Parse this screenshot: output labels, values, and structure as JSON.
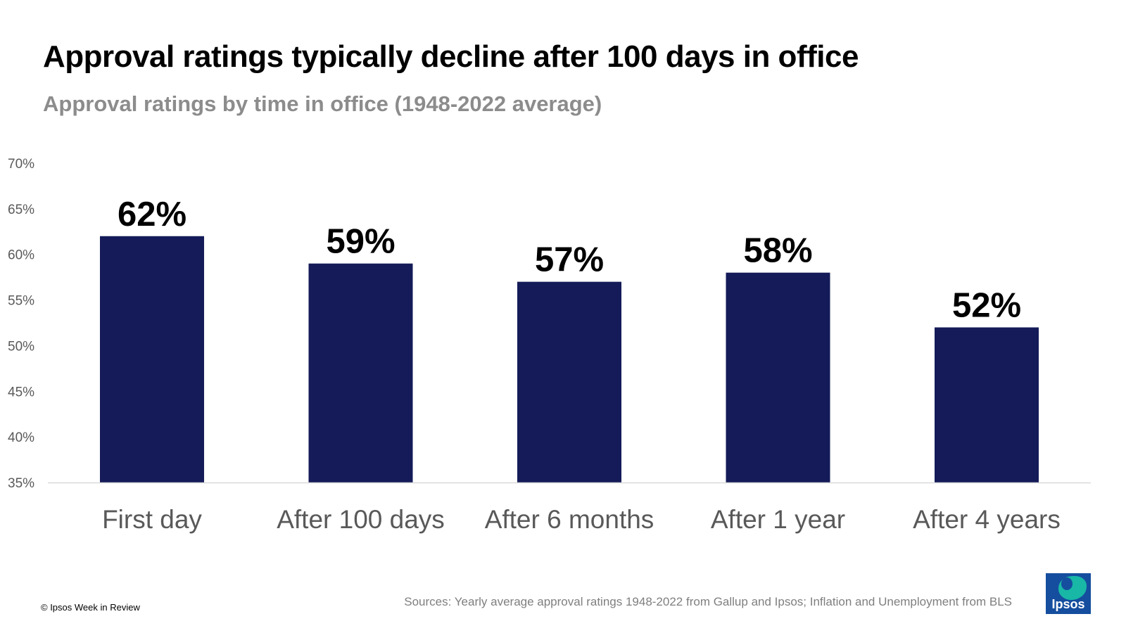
{
  "header": {
    "title": "Approval ratings typically decline after 100 days in office",
    "subtitle": "Approval ratings by time in office (1948-2022 average)"
  },
  "footer": {
    "copyright": "© Ipsos Week in Review",
    "sources": "Sources:  Yearly average approval ratings 1948-2022 from Gallup and Ipsos; Inflation and Unemployment from BLS",
    "logo_text": "Ipsos"
  },
  "colors": {
    "bar": "#141b58",
    "axis_line": "#d9d9d9",
    "tick_text": "#595959",
    "category_text": "#595959",
    "data_label": "#000000"
  },
  "chart_data": {
    "type": "bar",
    "title": "Approval ratings typically decline after 100 days in office",
    "subtitle": "Approval ratings by time in office (1948-2022 average)",
    "categories": [
      "First day",
      "After 100 days",
      "After 6 months",
      "After 1 year",
      "After 4 years"
    ],
    "values": [
      62,
      59,
      57,
      58,
      52
    ],
    "data_labels": [
      "62%",
      "59%",
      "57%",
      "58%",
      "52%"
    ],
    "ylim": [
      35,
      70
    ],
    "yticks": [
      35,
      40,
      45,
      50,
      55,
      60,
      65,
      70
    ],
    "ytick_labels": [
      "35%",
      "40%",
      "45%",
      "50%",
      "55%",
      "60%",
      "65%",
      "70%"
    ],
    "xlabel": "",
    "ylabel": "",
    "grid": false,
    "legend": "none"
  }
}
